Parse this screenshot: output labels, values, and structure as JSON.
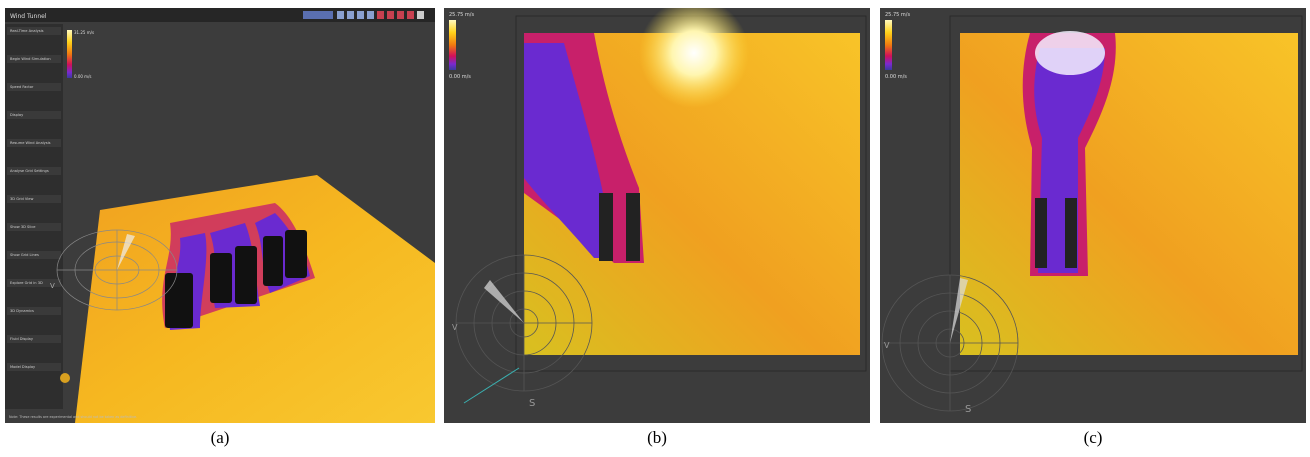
{
  "panels": [
    {
      "caption": "(a)",
      "title": "Wind Tunnel",
      "colorbar": {
        "max": "31.25 m/s",
        "min": "0.00 m/s"
      },
      "sidebar": [
        "Real-Time Analysis",
        "Begin Wind Simulation",
        "Speed Factor",
        "Display",
        "Resume Wind Analysis",
        "Analyse Grid Settings",
        "3D Grid View",
        "Show 3D Slice",
        "Show Grid Lines",
        "Explore Grid in 3D",
        "3D Dynamics",
        "Fluid Display",
        "Model Display"
      ],
      "note": "Note: These results are experimental and should not be taken as definitive.",
      "compass": [
        "V"
      ]
    },
    {
      "caption": "(b)",
      "colorbar": {
        "max": "25.75 m/s",
        "min": "0.00 m/s"
      },
      "compass": [
        "V",
        "S"
      ]
    },
    {
      "caption": "(c)",
      "colorbar": {
        "max": "25.75 m/s",
        "min": "0.00 m/s"
      },
      "compass": [
        "V",
        "S"
      ]
    }
  ]
}
